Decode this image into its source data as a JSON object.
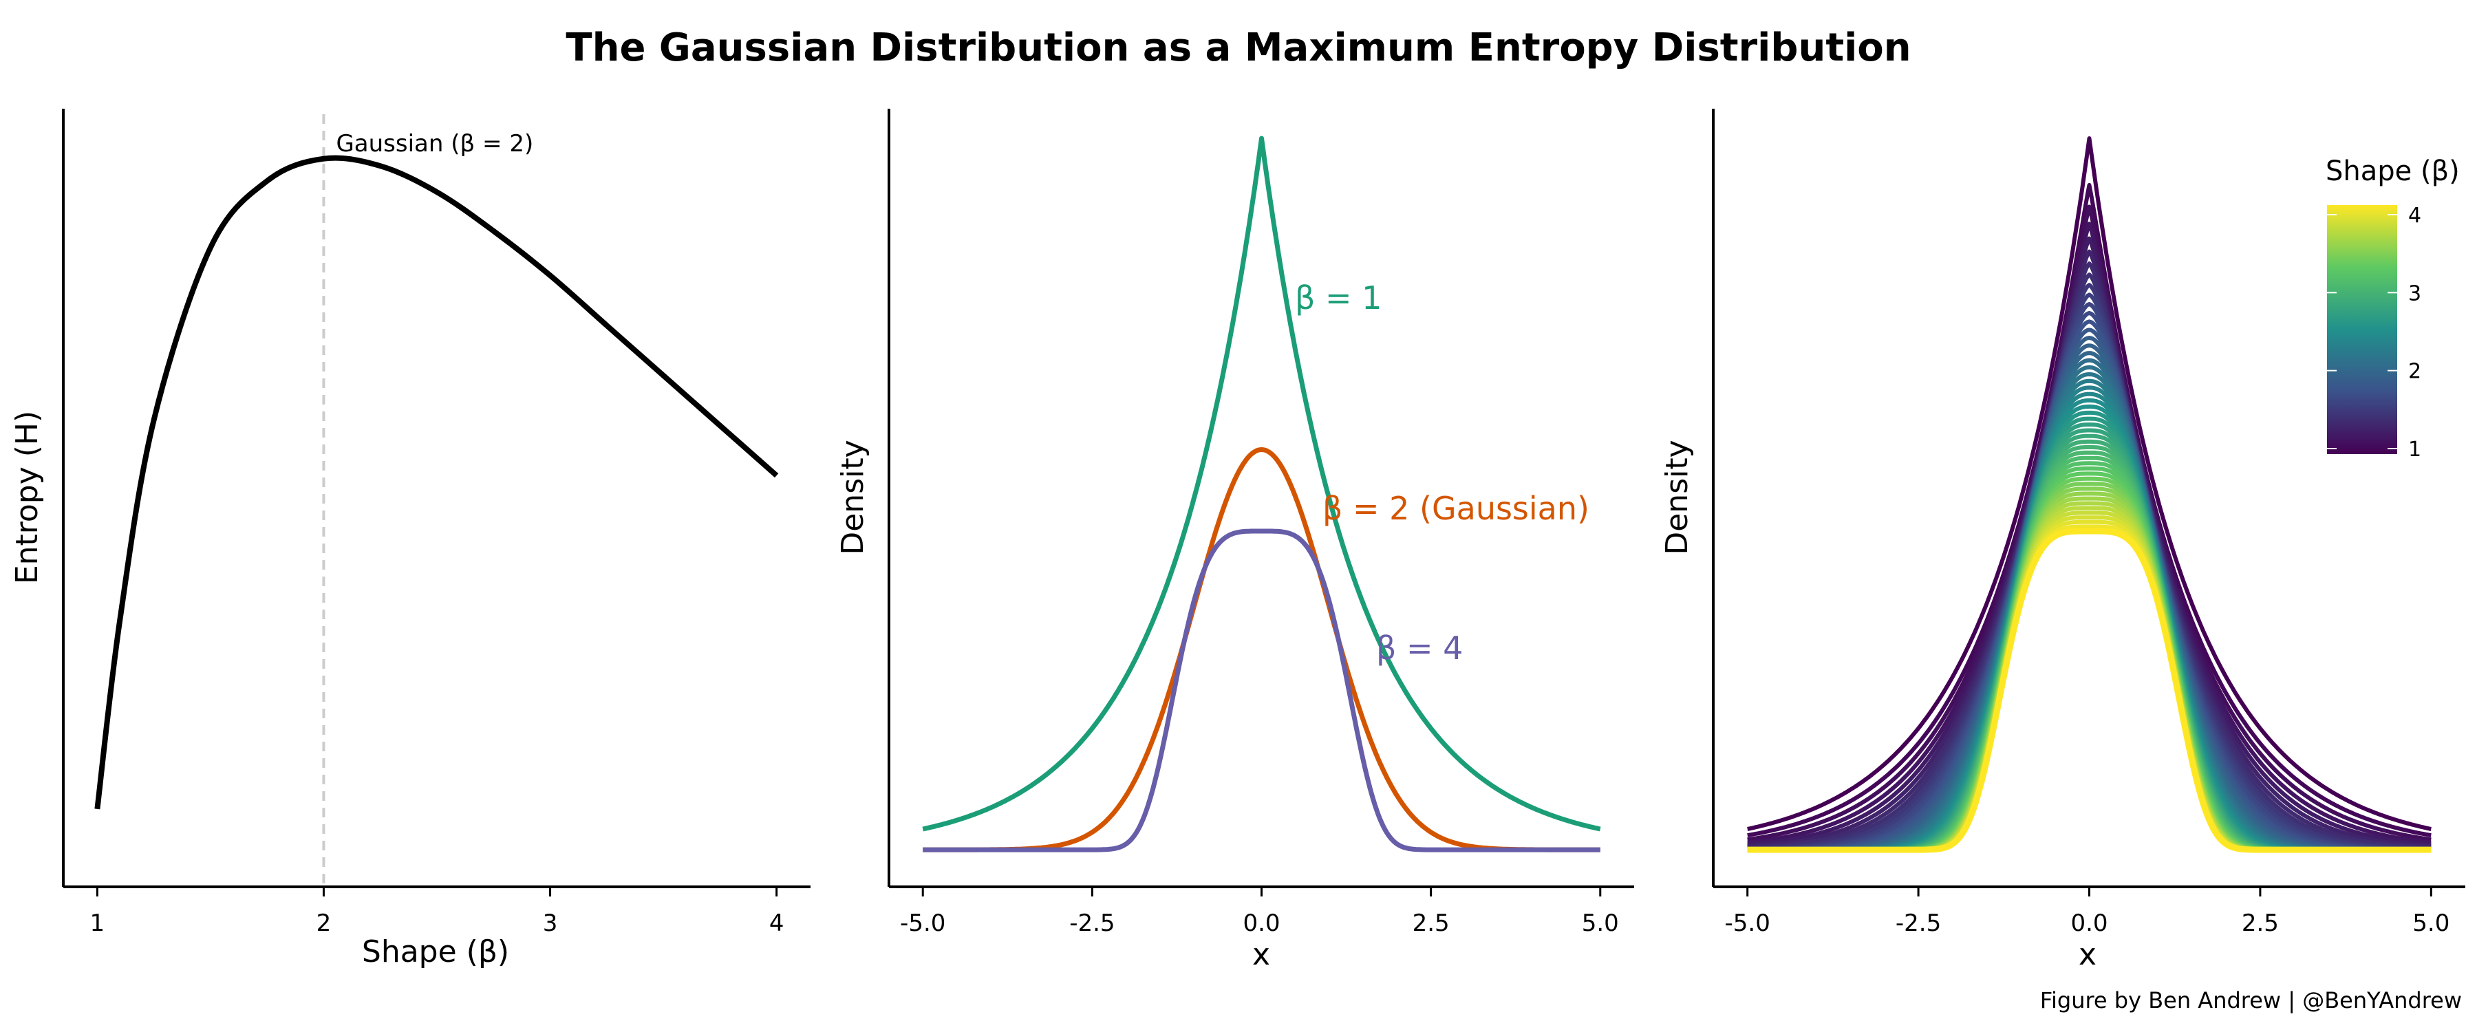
{
  "title": "The Gaussian Distribution as a Maximum Entropy Distribution",
  "caption": "Figure by Ben Andrew | @BenYAndrew",
  "chart_data": [
    {
      "type": "line",
      "xlabel": "Shape (β)",
      "ylabel": "Entropy (H)",
      "x_ticks": [
        "1",
        "2",
        "3",
        "4"
      ],
      "xlim": [
        0.85,
        4.15
      ],
      "ylim": [
        0.06,
        1.46
      ],
      "series": [
        {
          "color": "#000000",
          "x": [
            1.0,
            1.1,
            1.25,
            1.5,
            1.75,
            2.0,
            2.25,
            2.5,
            2.75,
            3.0,
            3.25,
            3.5,
            3.75,
            4.0
          ],
          "y": [
            0.2,
            0.54,
            0.9,
            1.21,
            1.33,
            1.37,
            1.357,
            1.31,
            1.24,
            1.16,
            1.07,
            0.98,
            0.89,
            0.8
          ]
        }
      ],
      "reference_line": {
        "x": 2,
        "style": "dashed",
        "color": "#cccccc",
        "label": "Gaussian (β = 2)"
      },
      "grid": false
    },
    {
      "type": "line",
      "xlabel": "x",
      "ylabel": "Density",
      "x_ticks": [
        "-5.0",
        "-2.5",
        "0.0",
        "2.5",
        "5.0"
      ],
      "xlim": [
        -5.5,
        5.5
      ],
      "ylim": [
        -0.05,
        1.0
      ],
      "series": [
        {
          "name": "β = 1",
          "beta": 1,
          "color": "#1b9e77",
          "peak": 0.96
        },
        {
          "name": "β = 2 (Gaussian)",
          "beta": 2,
          "color": "#d45500",
          "peak": 0.54
        },
        {
          "name": "β = 4",
          "beta": 4,
          "color": "#665ea8",
          "peak": 0.43
        }
      ],
      "grid": false
    },
    {
      "type": "line",
      "xlabel": "x",
      "ylabel": "Density",
      "x_ticks": [
        "-5.0",
        "-2.5",
        "0.0",
        "2.5",
        "5.0"
      ],
      "xlim": [
        -5.5,
        5.5
      ],
      "ylim": [
        -0.05,
        1.0
      ],
      "beta_range": [
        1,
        4
      ],
      "peak_range": [
        0.96,
        0.43
      ],
      "colorscale": "viridis",
      "legend": {
        "title": "Shape (β)",
        "ticks": [
          "1",
          "2",
          "3",
          "4"
        ],
        "position": "top-right"
      },
      "grid": false
    }
  ]
}
